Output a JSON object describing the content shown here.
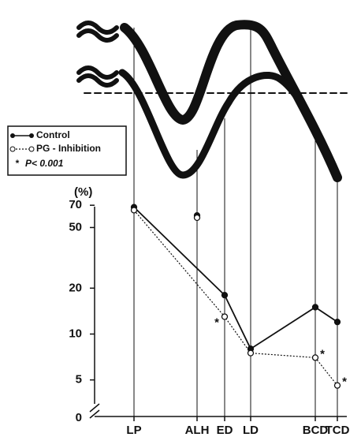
{
  "chart_data": {
    "type": "line",
    "y_unit": "(%)",
    "y_zero_label": "0",
    "categories": [
      "LP",
      "ALH",
      "ED",
      "LD",
      "BCD",
      "TCD"
    ],
    "series": [
      {
        "name": "Control",
        "color": "#111111",
        "marker": "filled",
        "values": [
          68,
          60,
          18,
          8,
          15,
          12
        ]
      },
      {
        "name": "PG - Inhibition",
        "color": "#111111",
        "marker": "open",
        "values": [
          65,
          58,
          13,
          7.5,
          7,
          4.6
        ]
      }
    ],
    "significance": {
      "label": "P< 0.001",
      "symbol": "*",
      "series": 1,
      "indices": [
        2,
        4,
        5
      ]
    },
    "log_scale": true,
    "ylim": [
      3.4,
      80
    ],
    "yticks": [
      5,
      10,
      20,
      50,
      70
    ]
  }
}
